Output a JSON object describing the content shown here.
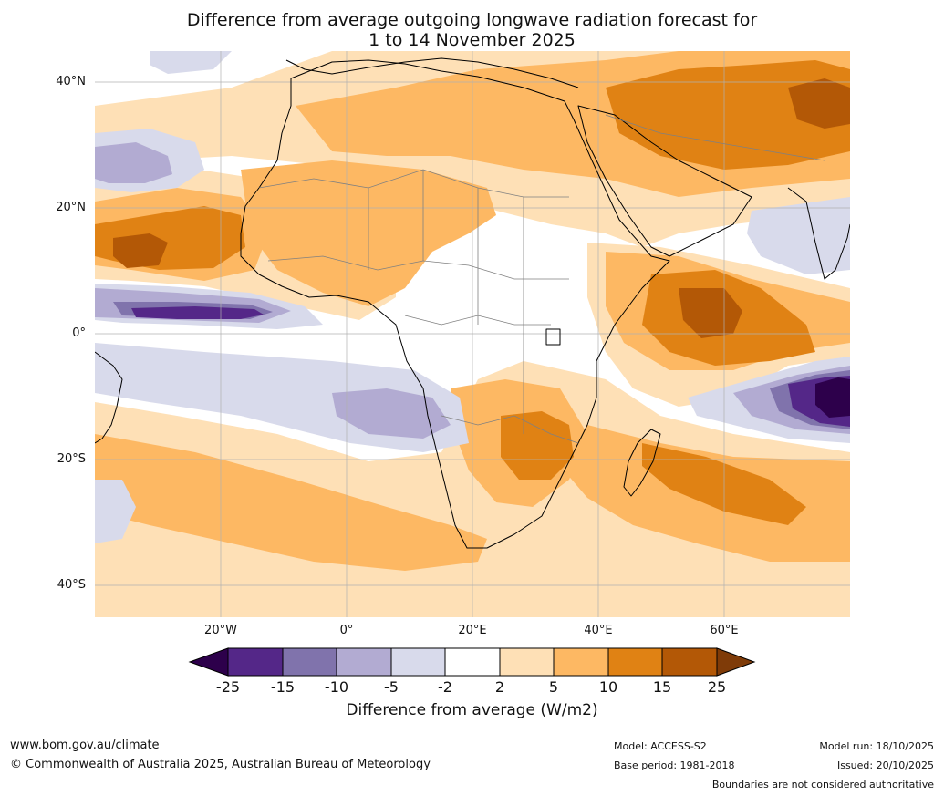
{
  "title": {
    "line1": "Difference from average outgoing longwave radiation forecast for",
    "line2": "1 to 14 November 2025"
  },
  "axes": {
    "lat_labels": [
      "40°N",
      "20°N",
      "0°",
      "20°S",
      "40°S"
    ],
    "lon_labels": [
      "20°W",
      "0°",
      "20°E",
      "40°E",
      "60°E"
    ]
  },
  "colorbar": {
    "title": "Difference from average (W/m2)",
    "tick_labels": [
      "-25",
      "-15",
      "-10",
      "-5",
      "-2",
      "2",
      "5",
      "10",
      "15",
      "25"
    ],
    "colors": [
      "#2d004b",
      "#542788",
      "#8073ac",
      "#b2abd2",
      "#d8daeb",
      "#ffffff",
      "#fee0b6",
      "#fdb863",
      "#e08214",
      "#b35806",
      "#7f3b08"
    ]
  },
  "footer": {
    "website": "www.bom.gov.au/climate",
    "copyright": "© Commonwealth of Australia 2025, Australian Bureau of Meteorology",
    "model": "Model: ACCESS-S2",
    "base_period": "Base period: 1981-2018",
    "model_run": "Model run: 18/10/2025",
    "issued": "Issued: 20/10/2025",
    "disclaimer": "Boundaries are not considered authoritative"
  }
}
